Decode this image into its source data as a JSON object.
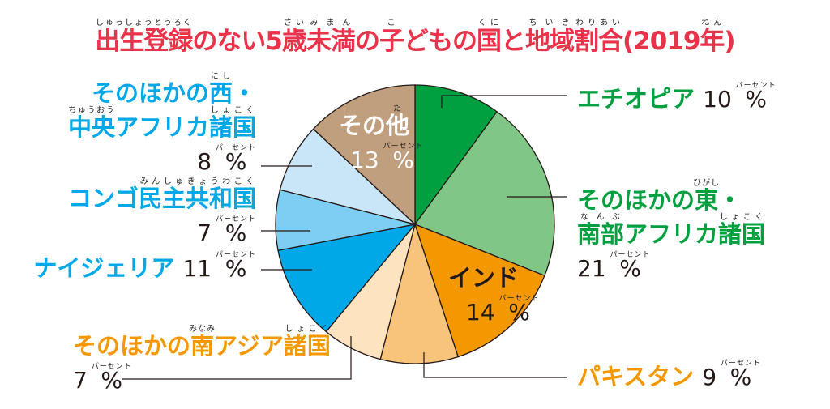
{
  "title": [
    {
      "text": "出生登録",
      "ruby": "しゅっしょうとうろく"
    },
    {
      "text": "のない5"
    },
    {
      "text": "歳",
      "ruby": "さい"
    },
    {
      "text": "未満",
      "ruby": "みまん"
    },
    {
      "text": "の"
    },
    {
      "text": "子",
      "ruby": "こ"
    },
    {
      "text": "どもの"
    },
    {
      "text": "国",
      "ruby": "くに"
    },
    {
      "text": "と"
    },
    {
      "text": "地域",
      "ruby": "ちいき"
    },
    {
      "text": "割合",
      "ruby": "わりあい"
    },
    {
      "text": "(2019"
    },
    {
      "text": "年",
      "ruby": "ねん"
    },
    {
      "text": ")"
    }
  ],
  "percent_ruby": "パーセント",
  "percent_sign": "%",
  "chart_data": {
    "type": "pie",
    "start": "top",
    "direction": "clockwise",
    "slices": [
      {
        "id": "ethiopia",
        "value": 10,
        "color": "#00a040",
        "label_color": "#00a040",
        "lines": [
          [
            {
              "text": "エチオピア"
            }
          ]
        ],
        "inside": false
      },
      {
        "id": "east",
        "value": 21,
        "color": "#80c687",
        "label_color": "#00a040",
        "lines": [
          [
            {
              "text": "そのほかの"
            },
            {
              "text": "東",
              "ruby": "ひがし"
            },
            {
              "text": "・"
            }
          ],
          [
            {
              "text": "南部",
              "ruby": "なんぶ"
            },
            {
              "text": "アフリカ"
            },
            {
              "text": "諸国",
              "ruby": "しょこく"
            }
          ]
        ],
        "inside": false
      },
      {
        "id": "india",
        "value": 14,
        "color": "#f39800",
        "label_color": "#231815",
        "lines": [
          [
            {
              "text": "インド"
            }
          ]
        ],
        "inside": true
      },
      {
        "id": "pakistan",
        "value": 9,
        "color": "#f8c37a",
        "label_color": "#f39800",
        "lines": [
          [
            {
              "text": "パキスタン"
            }
          ]
        ],
        "inside": false
      },
      {
        "id": "southasia",
        "value": 7,
        "color": "#fde3bf",
        "label_color": "#f39800",
        "lines": [
          [
            {
              "text": "そのほかの"
            },
            {
              "text": "南",
              "ruby": "みなみ"
            },
            {
              "text": "アジア"
            },
            {
              "text": "諸国",
              "ruby": "しょこく"
            }
          ]
        ],
        "inside": false
      },
      {
        "id": "nigeria",
        "value": 11,
        "color": "#00a8e8",
        "label_color": "#00a8e8",
        "lines": [
          [
            {
              "text": "ナイジェリア"
            }
          ]
        ],
        "inside": false
      },
      {
        "id": "congo",
        "value": 7,
        "color": "#7ecef4",
        "label_color": "#00a8e8",
        "lines": [
          [
            {
              "text": "コンゴ"
            },
            {
              "text": "民主共和国",
              "ruby": "みんしゅきょうわこく"
            }
          ]
        ],
        "inside": false
      },
      {
        "id": "west",
        "value": 8,
        "color": "#c8e6f8",
        "label_color": "#00a8e8",
        "lines": [
          [
            {
              "text": "そのほかの"
            },
            {
              "text": "西",
              "ruby": "にし"
            },
            {
              "text": "・"
            }
          ],
          [
            {
              "text": "中央",
              "ruby": "ちゅうおう"
            },
            {
              "text": "アフリカ"
            },
            {
              "text": "諸国",
              "ruby": "しょこく"
            }
          ]
        ],
        "inside": false
      },
      {
        "id": "other",
        "value": 13,
        "color": "#bf9f7e",
        "label_color": "#ffffff",
        "lines": [
          [
            {
              "text": "その"
            },
            {
              "text": "他",
              "ruby": "た"
            }
          ]
        ],
        "inside": true
      }
    ]
  }
}
